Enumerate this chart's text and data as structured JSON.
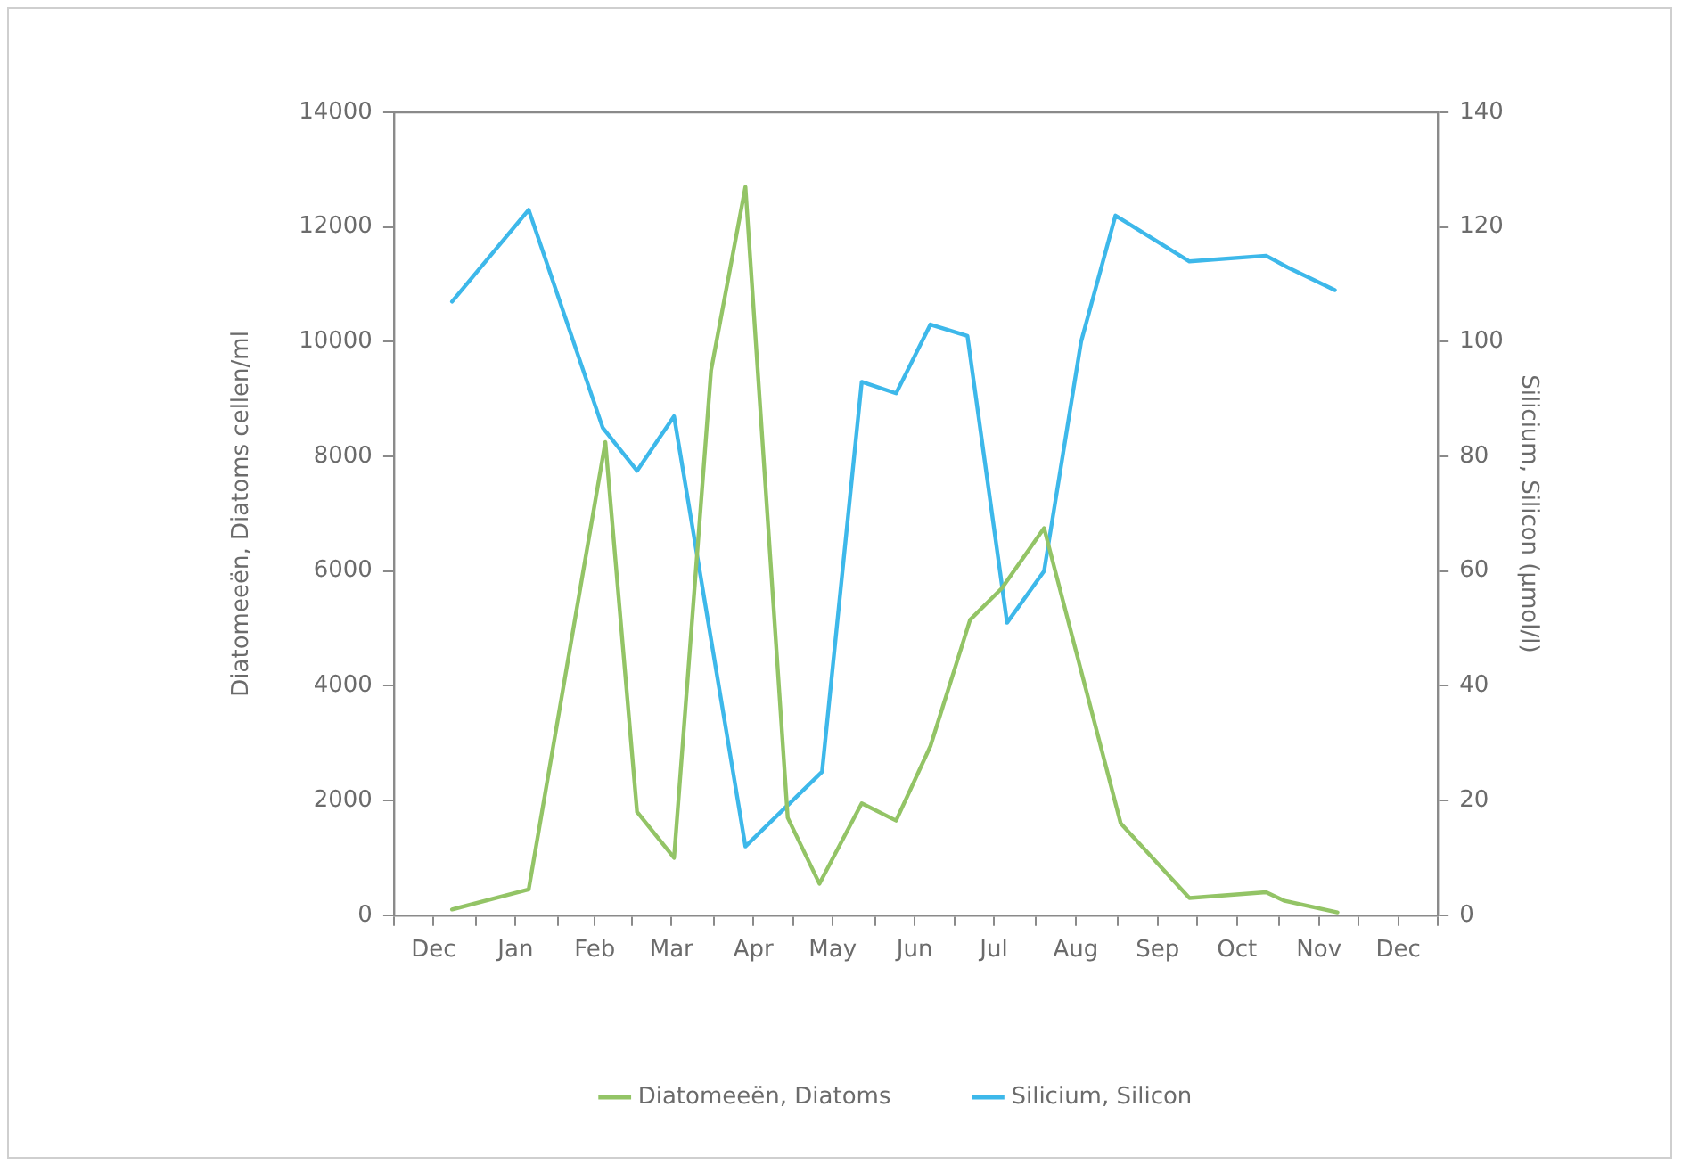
{
  "chart_data": {
    "type": "line",
    "ylabel": "Diatomeeën, Diatoms cellen/ml",
    "y2label": "Silicium, Silicon (µmol/l)",
    "xlim": [
      "2000-12-01",
      "2001-12-31"
    ],
    "xticks": [
      {
        "value": "2000-12-01",
        "label": null
      },
      {
        "value": "2000-12-16",
        "label": "Dec"
      },
      {
        "value": "2001-01-01",
        "label": null
      },
      {
        "value": "2001-01-16",
        "label": "Jan"
      },
      {
        "value": "2001-02-01",
        "label": null
      },
      {
        "value": "2001-02-15",
        "label": "Feb"
      },
      {
        "value": "2001-03-01",
        "label": null
      },
      {
        "value": "2001-03-16",
        "label": "Mar"
      },
      {
        "value": "2001-04-01",
        "label": null
      },
      {
        "value": "2001-04-16",
        "label": "Apr"
      },
      {
        "value": "2001-05-01",
        "label": null
      },
      {
        "value": "2001-05-16",
        "label": "May"
      },
      {
        "value": "2001-06-01",
        "label": null
      },
      {
        "value": "2001-06-16",
        "label": "Jun"
      },
      {
        "value": "2001-07-01",
        "label": null
      },
      {
        "value": "2001-07-16",
        "label": "Jul"
      },
      {
        "value": "2001-08-01",
        "label": null
      },
      {
        "value": "2001-08-16",
        "label": "Aug"
      },
      {
        "value": "2001-09-01",
        "label": null
      },
      {
        "value": "2001-09-16",
        "label": "Sep"
      },
      {
        "value": "2001-10-01",
        "label": null
      },
      {
        "value": "2001-10-16",
        "label": "Oct"
      },
      {
        "value": "2001-11-01",
        "label": null
      },
      {
        "value": "2001-11-16",
        "label": "Nov"
      },
      {
        "value": "2001-12-01",
        "label": null
      },
      {
        "value": "2001-12-16",
        "label": "Dec"
      },
      {
        "value": "2001-12-31",
        "label": null
      }
    ],
    "ylim": [
      0,
      14000
    ],
    "yticks": [
      0,
      2000,
      4000,
      6000,
      8000,
      10000,
      12000,
      14000
    ],
    "y2lim": [
      0,
      140
    ],
    "y2ticks": [
      0,
      20,
      40,
      60,
      80,
      100,
      120,
      140
    ],
    "grid": false,
    "legend": "bottom",
    "marker": "none",
    "line_style": "solid",
    "series": [
      {
        "name": "Diatomeeën, Diatoms",
        "color": "#93c466",
        "x": [
          "2000-12-23",
          "2001-01-21",
          "2001-02-19",
          "2001-03-03",
          "2001-03-17",
          "2001-03-31",
          "2001-04-13",
          "2001-04-29",
          "2001-05-11",
          "2001-05-27",
          "2001-06-09",
          "2001-06-22",
          "2001-07-07",
          "2001-07-19",
          "2001-08-04",
          "2001-09-02",
          "2001-09-28",
          "2001-10-27",
          "2001-11-03",
          "2001-11-23"
        ],
        "values": [
          100,
          450,
          8250,
          1800,
          1000,
          9500,
          12700,
          1700,
          550,
          1950,
          1650,
          2950,
          5150,
          5700,
          6750,
          1600,
          300,
          400,
          250,
          50
        ]
      },
      {
        "name": "Silicium, Silicon",
        "color": "#3db8ea",
        "axis": "y2",
        "x": [
          "2000-12-23",
          "2001-01-21",
          "2001-02-18",
          "2001-03-03",
          "2001-03-17",
          "2001-04-13",
          "2001-05-12",
          "2001-05-27",
          "2001-06-09",
          "2001-06-22",
          "2001-07-06",
          "2001-07-21",
          "2001-08-04",
          "2001-08-18",
          "2001-08-31",
          "2001-09-28",
          "2001-10-27",
          "2001-11-04",
          "2001-11-22"
        ],
        "values": [
          107,
          123,
          85,
          77.5,
          87,
          12,
          25,
          93,
          91,
          103,
          101,
          51,
          60,
          100,
          122,
          114,
          115,
          113,
          109
        ]
      }
    ]
  }
}
